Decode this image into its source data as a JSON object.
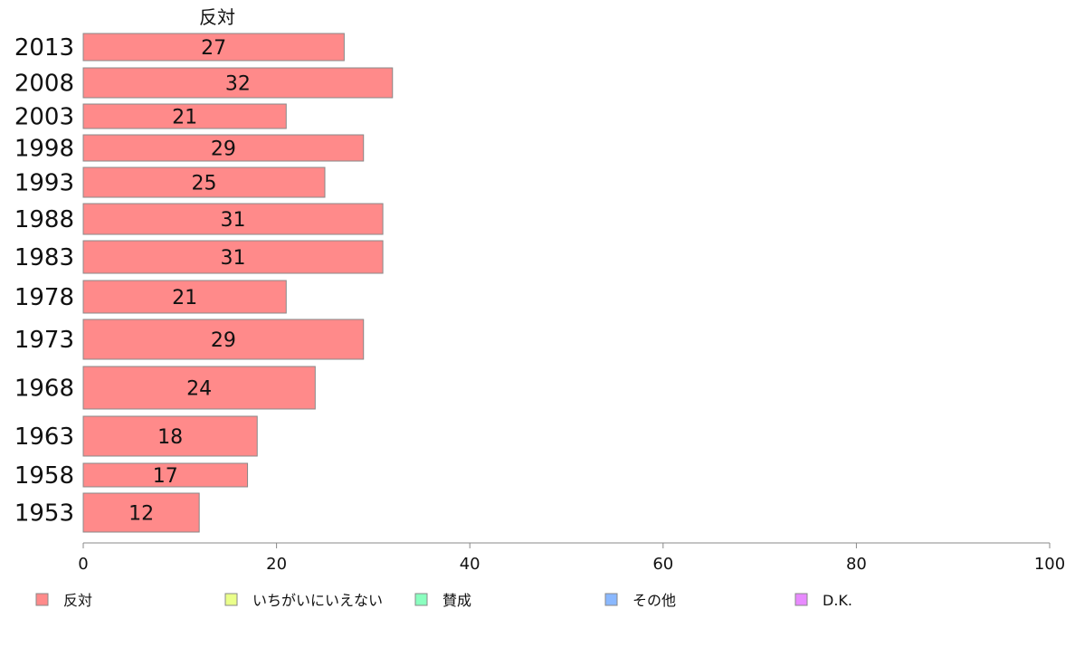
{
  "chart_data": {
    "type": "bar",
    "orientation": "horizontal",
    "series_title": "反対",
    "categories": [
      "2013",
      "2008",
      "2003",
      "1998",
      "1993",
      "1988",
      "1983",
      "1978",
      "1973",
      "1968",
      "1963",
      "1958",
      "1953"
    ],
    "series": [
      {
        "name": "反対",
        "color": "#ff8a8a",
        "values": [
          27,
          32,
          21,
          29,
          25,
          31,
          31,
          21,
          29,
          24,
          18,
          17,
          12
        ]
      }
    ],
    "xlim": [
      0,
      100
    ],
    "x_ticks": [
      "0",
      "20",
      "40",
      "60",
      "80",
      "100"
    ],
    "xlabel": "",
    "ylabel": "",
    "grid": false,
    "legend_position": "bottom",
    "legend": [
      {
        "label": "反対",
        "color": "#ff8a8a"
      },
      {
        "label": "いちがいにいえない",
        "color": "#eaff8a"
      },
      {
        "label": "賛成",
        "color": "#8affbf"
      },
      {
        "label": "その他",
        "color": "#8ab8ff"
      },
      {
        "label": "D.K.",
        "color": "#e88aff"
      }
    ]
  }
}
